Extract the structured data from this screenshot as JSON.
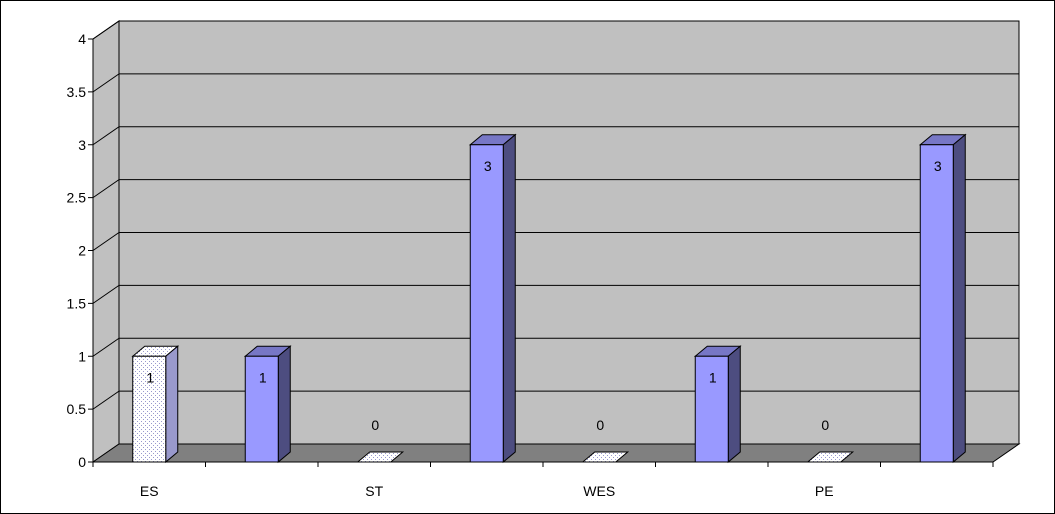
{
  "chart_data": {
    "type": "bar",
    "categories": [
      "ES",
      "",
      "ST",
      "",
      "WES",
      "",
      "PE",
      ""
    ],
    "values": [
      1,
      1,
      0,
      3,
      0,
      1,
      0,
      3
    ],
    "data_labels": [
      "1",
      "1",
      "0",
      "3",
      "0",
      "1",
      "0",
      "3"
    ],
    "styles": [
      "dotted",
      "solid",
      "dotted",
      "solid",
      "dotted",
      "solid",
      "dotted",
      "solid"
    ],
    "yticks": [
      "0",
      "0.5",
      "1",
      "1.5",
      "2",
      "2.5",
      "3",
      "3.5",
      "4"
    ],
    "ylim": [
      0,
      4
    ],
    "title": "",
    "xlabel": "",
    "ylabel": "",
    "grid": true,
    "legend": "none",
    "three_d": true
  },
  "colors": {
    "wall": "#c0c0c0",
    "floor": "#808080",
    "grid": "#000000",
    "solid_front": "#9999ff",
    "solid_side": "#4d4d80",
    "solid_top": "#7777c6",
    "dotted_front": "#ffffff",
    "dotted_dots": "#9999cc"
  }
}
